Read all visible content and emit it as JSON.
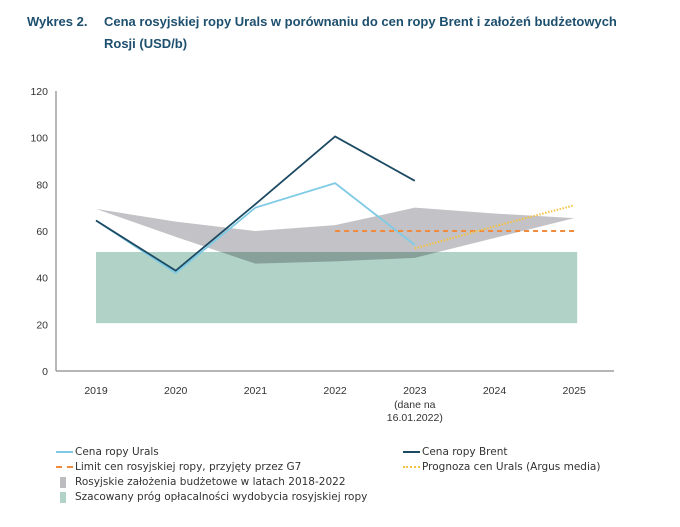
{
  "chart_data": {
    "type": "line",
    "figure_label": "Wykres 2.",
    "title": "Cena rosyjskiej ropy Urals w porównaniu do cen ropy Brent i założeń budżetowych Rosji (USD/b)",
    "xlabel": "",
    "ylabel": "",
    "categories": [
      "2019",
      "2020",
      "2021",
      "2022",
      "2023",
      "2024",
      "2025"
    ],
    "category_sublabels": {
      "2023": [
        "(dane na",
        "16.01.2022)"
      ]
    },
    "yticks": [
      0,
      20,
      40,
      60,
      80,
      100,
      120
    ],
    "ylim": [
      0,
      120
    ],
    "grid": false,
    "legend_position": "bottom",
    "series": [
      {
        "name": "Cena ropy Urals",
        "kind": "line",
        "style": "solid",
        "color": "#7fcbe6",
        "values": [
          64.5,
          42,
          70,
          80.5,
          54,
          null,
          null
        ]
      },
      {
        "name": "Cena ropy Brent",
        "kind": "line",
        "style": "solid",
        "color": "#1d4a63",
        "values": [
          64.5,
          43,
          71.5,
          100.5,
          81.5,
          null,
          null
        ]
      },
      {
        "name": "Limit cen rosyjskiej ropy, przyjęty przez G7",
        "kind": "line",
        "style": "dashed",
        "color": "#f08a3c",
        "values": [
          null,
          null,
          null,
          60,
          60,
          60,
          60
        ]
      },
      {
        "name": "Prognoza cen Urals (Argus media)",
        "kind": "line",
        "style": "dotted",
        "color": "#f5c242",
        "values": [
          null,
          null,
          null,
          null,
          52.5,
          62,
          71
        ]
      },
      {
        "name": "Rosyjskie założenia budżetowe w latach 2018-2022",
        "kind": "range",
        "color": "#bdbdc1",
        "upper": [
          69.5,
          64,
          60,
          62.5,
          70,
          67.5,
          65.5
        ],
        "lower": [
          69.5,
          57.5,
          46,
          47,
          48.5,
          57,
          65.5
        ]
      },
      {
        "name": "Szacowany próg opłacalności wydobycia rosyjskiej ropy",
        "kind": "band",
        "color": "#b1d2c6",
        "upper": 51,
        "lower": 20.5,
        "from": "2019",
        "to": "2025"
      }
    ]
  },
  "legend": {
    "left": [
      {
        "label": "Cena ropy Urals",
        "swatch": "line-solid",
        "color": "#7fcbe6"
      },
      {
        "label": "Limit cen rosyjskiej ropy, przyjęty przez G7",
        "swatch": "line-dashed",
        "color": "#f08a3c"
      },
      {
        "label": "Rosyjskie założenia budżetowe w latach 2018-2022",
        "swatch": "box",
        "color": "#bdbdc1"
      },
      {
        "label": "Szacowany próg opłacalności wydobycia rosyjskiej ropy",
        "swatch": "box",
        "color": "#b1d2c6"
      }
    ],
    "right": [
      {
        "label": "Cena ropy Brent",
        "swatch": "line-solid",
        "color": "#1d4a63"
      },
      {
        "label": "Prognoza cen Urals (Argus media)",
        "swatch": "line-dotted",
        "color": "#f5c242"
      }
    ]
  }
}
